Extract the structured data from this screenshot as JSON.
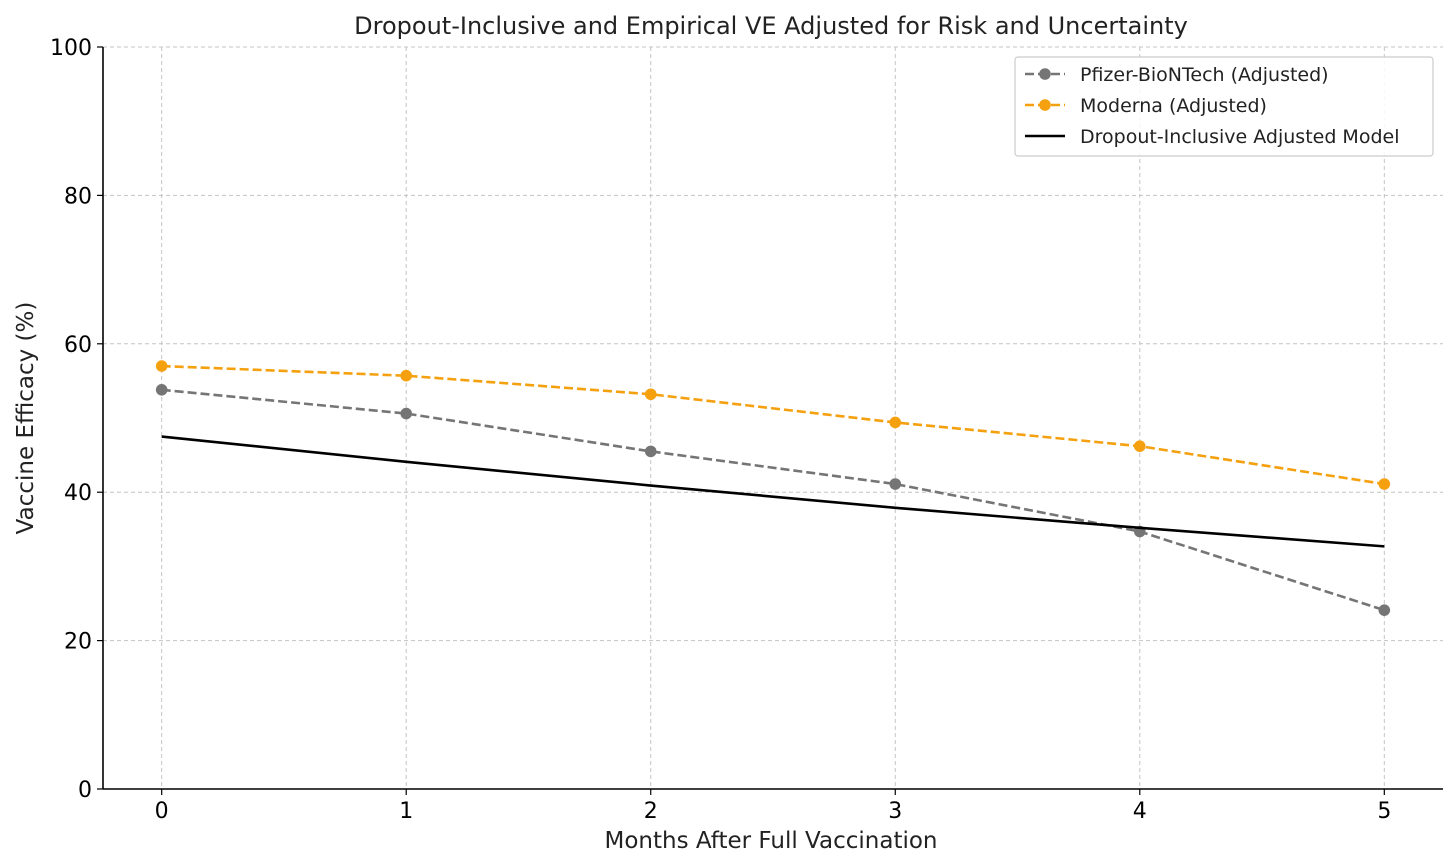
{
  "chart_data": {
    "type": "line",
    "title": "Dropout-Inclusive and Empirical VE Adjusted for Risk and Uncertainty",
    "xlabel": "Months After Full Vaccination",
    "ylabel": "Vaccine Efficacy (%)",
    "x": [
      0,
      1,
      2,
      3,
      4,
      5
    ],
    "x_ticks": [
      "0",
      "1",
      "2",
      "3",
      "4",
      "5"
    ],
    "y_ticks": [
      "0",
      "20",
      "40",
      "60",
      "80",
      "100"
    ],
    "xlim": [
      -0.24,
      5.24
    ],
    "ylim": [
      0,
      100
    ],
    "grid": true,
    "legend_position": "top-right",
    "series": [
      {
        "name": "Pfizer-BioNTech (Adjusted)",
        "values": [
          53.8,
          50.6,
          45.5,
          41.1,
          34.7,
          24.1
        ],
        "color": "#757575",
        "style": "dashed",
        "marker": "circle"
      },
      {
        "name": "Moderna (Adjusted)",
        "values": [
          57.0,
          55.7,
          53.2,
          49.4,
          46.2,
          41.1
        ],
        "color": "#f5a00f",
        "style": "dashed",
        "marker": "circle"
      },
      {
        "name": "Dropout-Inclusive Adjusted Model",
        "values": [
          47.5,
          44.1,
          40.9,
          37.9,
          35.2,
          32.7
        ],
        "color": "#000000",
        "style": "solid",
        "marker": "none"
      }
    ]
  }
}
